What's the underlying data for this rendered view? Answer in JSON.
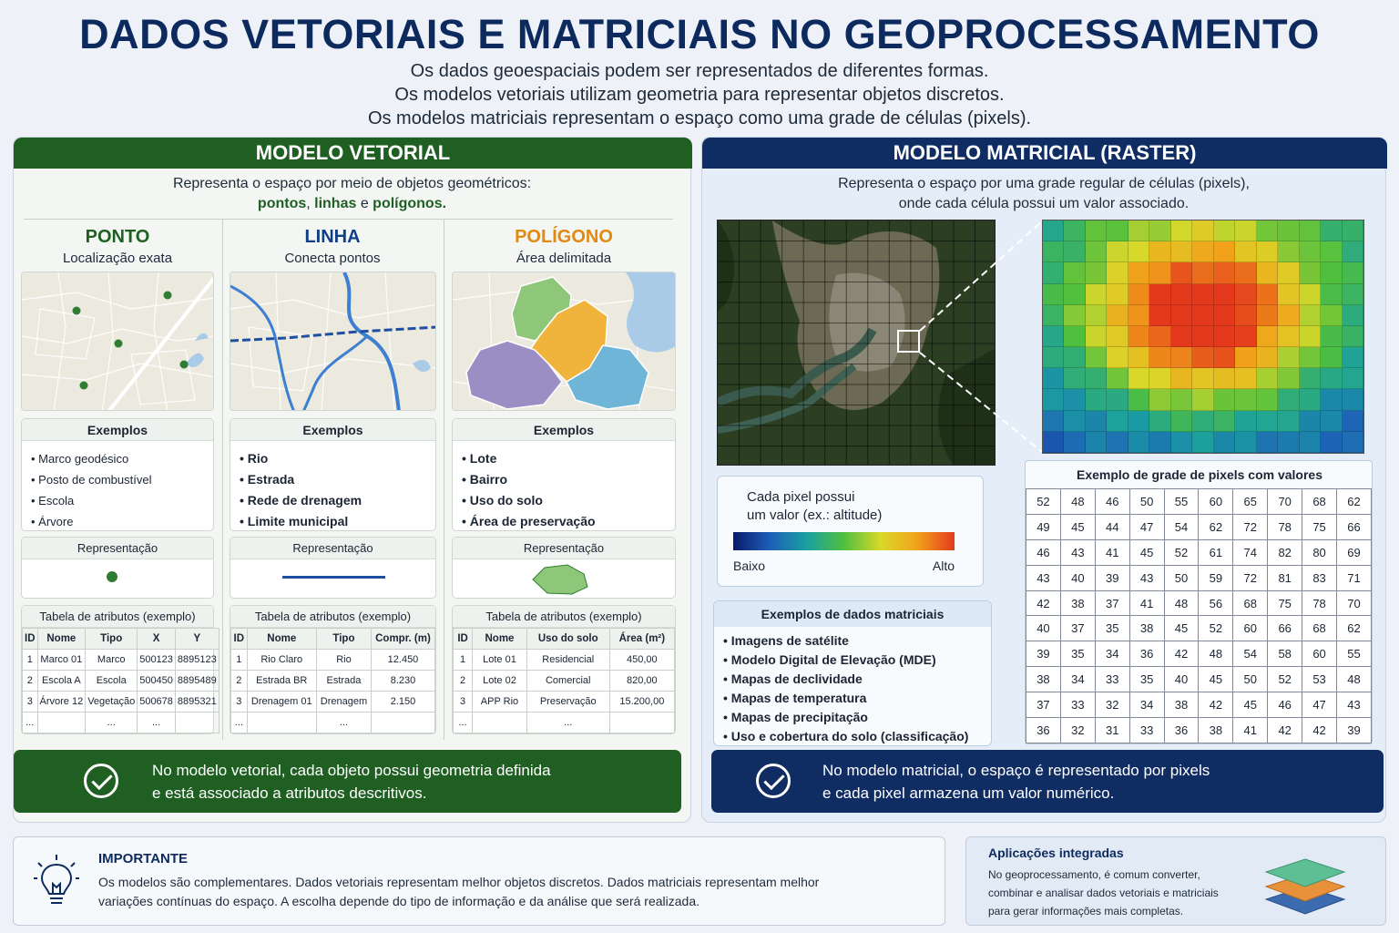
{
  "title": "DADOS VETORIAIS E MATRICIAIS NO GEOPROCESSAMENTO",
  "subtitle_lines": [
    "Os dados geoespaciais podem ser representados de diferentes formas.",
    "Os modelos vetoriais utilizam geometria para representar objetos discretos.",
    "Os modelos matriciais representam o espaço como uma grade de células (pixels)."
  ],
  "vector": {
    "header": "MODELO VETORIAL",
    "intro_line1": "Representa o espaço por meio de objetos geométricos:",
    "intro_pontos": "pontos",
    "intro_sep1": ", ",
    "intro_linhas": "linhas",
    "intro_sep2": " e ",
    "intro_poligonos": "polígonos",
    "intro_end": ".",
    "columns": [
      {
        "title": "PONTO",
        "subtitle": "Localização exata",
        "examples_title": "Exemplos",
        "examples": [
          "Marco geodésico",
          "Posto de combustível",
          "Escola",
          "Árvore"
        ],
        "representation_title": "Representação",
        "table_title": "Tabela de atributos (exemplo)",
        "table_headers": [
          "ID",
          "Nome",
          "Tipo",
          "X",
          "Y"
        ],
        "table_rows": [
          [
            "1",
            "Marco 01",
            "Marco",
            "500123",
            "8895123"
          ],
          [
            "2",
            "Escola A",
            "Escola",
            "500450",
            "8895489"
          ],
          [
            "3",
            "Árvore 12",
            "Vegetação",
            "500678",
            "8895321"
          ],
          [
            "...",
            "",
            "...",
            "...",
            ""
          ]
        ]
      },
      {
        "title": "LINHA",
        "subtitle": "Conecta pontos",
        "examples_title": "Exemplos",
        "examples": [
          "Rio",
          "Estrada",
          "Rede de drenagem",
          "Limite municipal"
        ],
        "representation_title": "Representação",
        "table_title": "Tabela de atributos (exemplo)",
        "table_headers": [
          "ID",
          "Nome",
          "Tipo",
          "Compr. (m)"
        ],
        "table_rows": [
          [
            "1",
            "Rio Claro",
            "Rio",
            "12.450"
          ],
          [
            "2",
            "Estrada BR",
            "Estrada",
            "8.230"
          ],
          [
            "3",
            "Drenagem 01",
            "Drenagem",
            "2.150"
          ],
          [
            "...",
            "",
            "...",
            ""
          ]
        ]
      },
      {
        "title": "POLÍGONO",
        "subtitle": "Área delimitada",
        "examples_title": "Exemplos",
        "examples": [
          "Lote",
          "Bairro",
          "Uso do solo",
          "Área de preservação"
        ],
        "representation_title": "Representação",
        "table_title": "Tabela de atributos (exemplo)",
        "table_headers": [
          "ID",
          "Nome",
          "Uso do solo",
          "Área (m²)"
        ],
        "table_rows": [
          [
            "1",
            "Lote 01",
            "Residencial",
            "450,00"
          ],
          [
            "2",
            "Lote 02",
            "Comercial",
            "820,00"
          ],
          [
            "3",
            "APP Rio",
            "Preservação",
            "15.200,00"
          ],
          [
            "...",
            "",
            "...",
            ""
          ]
        ]
      }
    ],
    "banner_line1": "No modelo vetorial, cada objeto possui geometria definida",
    "banner_line2": "e está associado a atributos descritivos."
  },
  "raster": {
    "header": "MODELO MATRICIAL (RASTER)",
    "intro_line1": "Representa o espaço por uma grade regular de células (pixels),",
    "intro_line2": "onde cada célula possui um valor associado.",
    "legend_line1": "Cada pixel possui",
    "legend_line2": "um valor (ex.: altitude)",
    "legend_low": "Baixo",
    "legend_high": "Alto",
    "grid_title": "Exemplo de grade de pixels com valores",
    "grid_values": [
      [
        52,
        48,
        46,
        50,
        55,
        60,
        65,
        70,
        68,
        62
      ],
      [
        49,
        45,
        44,
        47,
        54,
        62,
        72,
        78,
        75,
        66
      ],
      [
        46,
        43,
        41,
        45,
        52,
        61,
        74,
        82,
        80,
        69
      ],
      [
        43,
        40,
        39,
        43,
        50,
        59,
        72,
        81,
        83,
        71
      ],
      [
        42,
        38,
        37,
        41,
        48,
        56,
        68,
        75,
        78,
        70
      ],
      [
        40,
        37,
        35,
        38,
        45,
        52,
        60,
        66,
        68,
        62
      ],
      [
        39,
        35,
        34,
        36,
        42,
        48,
        54,
        58,
        60,
        55
      ],
      [
        38,
        34,
        33,
        35,
        40,
        45,
        50,
        52,
        53,
        48
      ],
      [
        37,
        33,
        32,
        34,
        38,
        42,
        45,
        46,
        47,
        43
      ],
      [
        36,
        32,
        31,
        33,
        36,
        38,
        41,
        42,
        42,
        39
      ]
    ],
    "examples_title": "Exemplos de dados matriciais",
    "examples": [
      "Imagens de satélite",
      "Modelo Digital de Elevação (MDE)",
      "Mapas de declividade",
      "Mapas de temperatura",
      "Mapas de precipitação",
      "Uso e cobertura do solo (classificação)"
    ],
    "banner_line1": "No modelo matricial, o espaço é representado por pixels",
    "banner_line2": "e cada pixel armazena um valor numérico."
  },
  "important": {
    "title": "IMPORTANTE",
    "line1": "Os modelos são complementares. Dados vetoriais representam melhor objetos discretos. Dados matriciais representam melhor",
    "line2": "variações contínuas do espaço. A escolha depende do tipo de informação e da análise que será realizada."
  },
  "applications": {
    "title": "Aplicações integradas",
    "line1": "No geoprocessamento, é comum converter,",
    "line2": "combinar e analisar dados vetoriais e matriciais",
    "line3": "para gerar informações mais completas."
  },
  "colors": {
    "vector_green": "#1f5f22",
    "raster_navy": "#0f2c63",
    "title_navy": "#0d2a5e",
    "polygon_orange": "#e08a12"
  }
}
